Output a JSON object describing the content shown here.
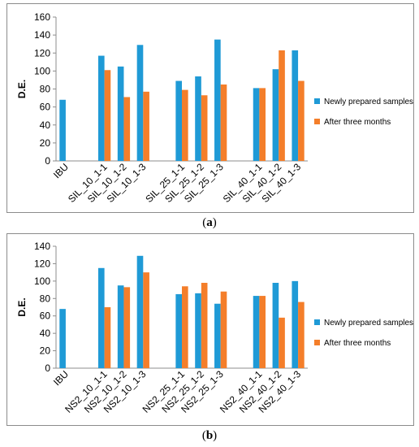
{
  "colors": {
    "series1": "#1f9ad6",
    "series2": "#f47e2a"
  },
  "captions": {
    "a": {
      "open": "(",
      "letter": "a",
      "close": ")"
    },
    "b": {
      "open": "(",
      "letter": "b",
      "close": ")"
    }
  },
  "chart_data": [
    {
      "type": "bar",
      "ylabel": "D.E.",
      "xlabel": "",
      "ylim": [
        0,
        160
      ],
      "yticks": [
        0,
        20,
        40,
        60,
        80,
        100,
        120,
        140,
        160
      ],
      "grid": false,
      "legend_position": "right",
      "categories": [
        "IBU",
        "",
        "SIL_10_1-1",
        "SIL_10_1-2",
        "SIL_10_1-3",
        "",
        "SIL_25_1-1",
        "SIL_25_1-2",
        "SIL_25_1-3",
        "",
        "SIL_40_1-1",
        "SIL_40_1-2",
        "SIL_40_1-3"
      ],
      "series": [
        {
          "name": "Newly prepared samples",
          "values": [
            68,
            null,
            117,
            105,
            129,
            null,
            89,
            94,
            135,
            null,
            81,
            102,
            123
          ]
        },
        {
          "name": "After three months",
          "values": [
            null,
            null,
            101,
            71,
            77,
            null,
            79,
            73,
            85,
            null,
            81,
            123,
            89
          ]
        }
      ]
    },
    {
      "type": "bar",
      "ylabel": "D.E.",
      "xlabel": "",
      "ylim": [
        0,
        140
      ],
      "yticks": [
        0,
        20,
        40,
        60,
        80,
        100,
        120,
        140
      ],
      "grid": false,
      "legend_position": "right",
      "categories": [
        "IBU",
        "",
        "NS2_10_1-1",
        "NS2_10_1-2",
        "NS2_10_1-3",
        "",
        "NS2_25_1-1",
        "NS2_25_1-2",
        "NS2_25_1-3",
        "",
        "NS2_40_1-1",
        "NS2_40_1-2",
        "NS2_40_1-3"
      ],
      "series": [
        {
          "name": "Newly prepared samples",
          "values": [
            68,
            null,
            115,
            95,
            129,
            null,
            85,
            86,
            74,
            null,
            83,
            98,
            100
          ]
        },
        {
          "name": "After three months",
          "values": [
            null,
            null,
            70,
            93,
            110,
            null,
            94,
            98,
            88,
            null,
            83,
            58,
            76
          ]
        }
      ]
    }
  ]
}
